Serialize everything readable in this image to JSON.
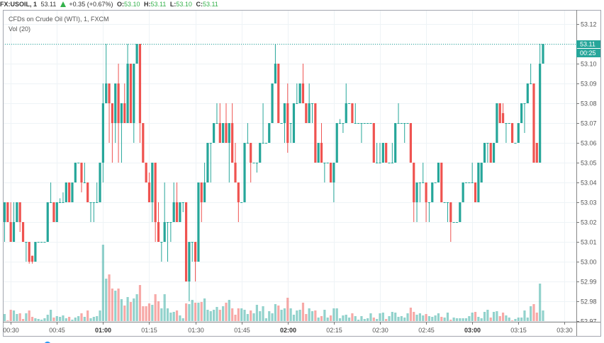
{
  "header": {
    "symbol": "FX:USOIL, 1",
    "last": "53.11",
    "direction_icon": "up-triangle-icon",
    "change": "+0.35 (+0.67%)",
    "ohlc": [
      {
        "key": "O:",
        "value": "53.10"
      },
      {
        "key": "H:",
        "value": "53.11"
      },
      {
        "key": "L:",
        "value": "53.10"
      },
      {
        "key": "C:",
        "value": "53.11"
      }
    ]
  },
  "legend": {
    "series": "CFDs on Crude Oil (WTI), 1, FXCM",
    "volume": "Vol (20)"
  },
  "price_axis": {
    "labels": [
      "53.12",
      "53.11",
      "53.10",
      "53.09",
      "53.08",
      "53.07",
      "53.06",
      "53.05",
      "53.04",
      "53.03",
      "53.02",
      "53.01",
      "53.00",
      "52.99",
      "52.98",
      "52.97"
    ],
    "last_price_badge": "53.11",
    "countdown_badge": "00:25"
  },
  "time_axis": {
    "labels": [
      {
        "label": "00:30",
        "bold": false
      },
      {
        "label": "00:45",
        "bold": false
      },
      {
        "label": "01:00",
        "bold": true
      },
      {
        "label": "01:15",
        "bold": false
      },
      {
        "label": "01:30",
        "bold": false
      },
      {
        "label": "01:45",
        "bold": false
      },
      {
        "label": "02:00",
        "bold": true
      },
      {
        "label": "02:15",
        "bold": false
      },
      {
        "label": "02:30",
        "bold": false
      },
      {
        "label": "02:45",
        "bold": false
      },
      {
        "label": "03:00",
        "bold": true
      },
      {
        "label": "03:15",
        "bold": false
      },
      {
        "label": "03:30",
        "bold": false
      }
    ]
  },
  "colors": {
    "up": "#26a69a",
    "down": "#ef5350",
    "up_volume": "rgba(38,166,154,0.5)",
    "down_volume": "rgba(239,83,80,0.5)",
    "header_value": "#33b14a",
    "last_price_line": "#26a69a",
    "badge": "#26a69a",
    "grid": "#eef3f6",
    "frame": "#a3a6af",
    "indicator_dot": "#2196f3"
  },
  "chart_data": {
    "type": "candlestick",
    "title": "CFDs on Crude Oil (WTI), 1, FXCM",
    "symbol": "FX:USOIL",
    "interval": "1",
    "xlabel": "",
    "ylabel": "",
    "ylim": [
      52.97,
      53.12
    ],
    "y_ticks": [
      53.12,
      53.11,
      53.1,
      53.09,
      53.08,
      53.07,
      53.06,
      53.05,
      53.04,
      53.03,
      53.02,
      53.01,
      53.0,
      52.99,
      52.98,
      52.97
    ],
    "x_ticks": [
      "00:30",
      "00:45",
      "01:00",
      "01:15",
      "01:30",
      "01:45",
      "02:00",
      "02:15",
      "02:30",
      "02:45",
      "03:00",
      "03:15",
      "03:30"
    ],
    "grid": true,
    "last_price": 53.11,
    "ohlc_order": [
      "open",
      "high",
      "low",
      "close"
    ],
    "candles": [
      [
        53.02,
        53.03,
        53.01,
        53.03
      ],
      [
        53.03,
        53.03,
        53.02,
        53.02
      ],
      [
        53.02,
        53.03,
        53.01,
        53.01
      ],
      [
        53.01,
        53.03,
        53.01,
        53.02
      ],
      [
        53.02,
        53.03,
        53.02,
        53.03
      ],
      [
        53.03,
        53.03,
        53.015,
        53.02
      ],
      [
        53.02,
        53.02,
        53.01,
        53.01
      ],
      [
        53.01,
        53.01,
        53.0,
        53.01
      ],
      [
        53.01,
        53.01,
        52.999,
        53.0
      ],
      [
        53.003,
        53.003,
        52.999,
        53.0
      ],
      [
        53.0,
        53.01,
        53.0,
        53.01
      ],
      [
        53.01,
        53.01,
        53.01,
        53.01
      ],
      [
        53.01,
        53.01,
        53.01,
        53.01
      ],
      [
        53.01,
        53.01,
        53.01,
        53.01
      ],
      [
        53.01,
        53.03,
        53.01,
        53.03
      ],
      [
        53.03,
        53.04,
        53.03,
        53.03
      ],
      [
        53.03,
        53.03,
        53.02,
        53.02
      ],
      [
        53.02,
        53.03,
        53.02,
        53.03
      ],
      [
        53.03,
        53.032,
        53.03,
        53.03
      ],
      [
        53.03,
        53.035,
        53.03,
        53.03
      ],
      [
        53.03,
        53.04,
        53.03,
        53.04
      ],
      [
        53.04,
        53.04,
        53.03,
        53.03
      ],
      [
        53.03,
        53.04,
        53.03,
        53.04
      ],
      [
        53.04,
        53.05,
        53.04,
        53.05
      ],
      [
        53.05,
        53.05,
        53.05,
        53.05
      ],
      [
        53.05,
        53.05,
        53.035,
        53.04
      ],
      [
        53.04,
        53.05,
        53.04,
        53.04
      ],
      [
        53.04,
        53.04,
        53.03,
        53.03
      ],
      [
        53.03,
        53.03,
        53.02,
        53.03
      ],
      [
        53.03,
        53.03,
        53.02,
        53.03
      ],
      [
        53.03,
        53.04,
        53.03,
        53.03
      ],
      [
        53.03,
        53.05,
        53.03,
        53.05
      ],
      [
        53.05,
        53.09,
        53.04,
        53.08
      ],
      [
        53.08,
        53.11,
        53.08,
        53.09
      ],
      [
        53.09,
        53.09,
        53.06,
        53.08
      ],
      [
        53.08,
        53.08,
        53.05,
        53.07
      ],
      [
        53.07,
        53.09,
        53.06,
        53.09
      ],
      [
        53.09,
        53.1,
        53.05,
        53.07
      ],
      [
        53.07,
        53.08,
        53.05,
        53.08
      ],
      [
        53.08,
        53.09,
        53.07,
        53.07
      ],
      [
        53.07,
        53.11,
        53.07,
        53.1
      ],
      [
        53.1,
        53.1,
        53.07,
        53.07
      ],
      [
        53.07,
        53.1,
        53.06,
        53.1
      ],
      [
        53.1,
        53.11,
        53.1,
        53.11
      ],
      [
        53.11,
        53.11,
        53.06,
        53.07
      ],
      [
        53.07,
        53.07,
        53.05,
        53.05
      ],
      [
        53.05,
        53.05,
        53.04,
        53.04
      ],
      [
        53.04,
        53.045,
        53.03,
        53.03
      ],
      [
        53.03,
        53.05,
        53.02,
        53.05
      ],
      [
        53.05,
        53.05,
        53.01,
        53.02
      ],
      [
        53.02,
        53.03,
        53.01,
        53.01
      ],
      [
        53.01,
        53.01,
        53.0,
        53.01
      ],
      [
        53.01,
        53.04,
        53.01,
        53.02
      ],
      [
        53.02,
        53.02,
        53.0,
        53.02
      ],
      [
        53.02,
        53.02,
        53.01,
        53.02
      ],
      [
        53.02,
        53.04,
        53.02,
        53.03
      ],
      [
        53.03,
        53.04,
        53.02,
        53.02
      ],
      [
        53.02,
        53.03,
        53.02,
        53.03
      ],
      [
        53.03,
        53.03,
        53.025,
        53.03
      ],
      [
        53.03,
        53.03,
        52.99,
        52.99
      ],
      [
        52.99,
        53.01,
        52.98,
        53.01
      ],
      [
        53.01,
        53.01,
        53.0,
        53.01
      ],
      [
        53.01,
        53.01,
        52.99,
        53.0
      ],
      [
        53.0,
        53.04,
        53.0,
        53.04
      ],
      [
        53.04,
        53.04,
        53.02,
        53.03
      ],
      [
        53.03,
        53.05,
        53.03,
        53.04
      ],
      [
        53.04,
        53.06,
        53.04,
        53.06
      ],
      [
        53.06,
        53.06,
        53.04,
        53.06
      ],
      [
        53.06,
        53.07,
        53.06,
        53.07
      ],
      [
        53.07,
        53.08,
        53.07,
        53.07
      ],
      [
        53.07,
        53.08,
        53.06,
        53.06
      ],
      [
        53.06,
        53.07,
        53.06,
        53.07
      ],
      [
        53.07,
        53.08,
        53.06,
        53.06
      ],
      [
        53.06,
        53.07,
        53.04,
        53.07
      ],
      [
        53.07,
        53.08,
        53.05,
        53.05
      ],
      [
        53.05,
        53.06,
        53.04,
        53.04
      ],
      [
        53.04,
        53.04,
        53.02,
        53.03
      ],
      [
        53.03,
        53.03,
        53.03,
        53.03
      ],
      [
        53.03,
        53.06,
        53.03,
        53.06
      ],
      [
        53.06,
        53.07,
        53.06,
        53.06
      ],
      [
        53.06,
        53.06,
        53.04,
        53.05
      ],
      [
        53.05,
        53.05,
        53.05,
        53.05
      ],
      [
        53.05,
        53.05,
        53.045,
        53.05
      ],
      [
        53.05,
        53.06,
        53.05,
        53.06
      ],
      [
        53.06,
        53.08,
        53.06,
        53.06
      ],
      [
        53.06,
        53.06,
        53.06,
        53.06
      ],
      [
        53.06,
        53.07,
        53.06,
        53.07
      ],
      [
        53.07,
        53.09,
        53.07,
        53.09
      ],
      [
        53.09,
        53.11,
        53.09,
        53.1
      ],
      [
        53.1,
        53.1,
        53.07,
        53.07
      ],
      [
        53.07,
        53.07,
        53.07,
        53.07
      ],
      [
        53.07,
        53.08,
        53.06,
        53.08
      ],
      [
        53.08,
        53.09,
        53.055,
        53.06
      ],
      [
        53.07,
        53.07,
        53.06,
        53.07
      ],
      [
        53.06,
        53.08,
        53.06,
        53.08
      ],
      [
        53.08,
        53.09,
        53.08,
        53.08
      ],
      [
        53.08,
        53.09,
        53.08,
        53.09
      ],
      [
        53.09,
        53.1,
        53.08,
        53.08
      ],
      [
        53.08,
        53.08,
        53.07,
        53.07
      ],
      [
        53.07,
        53.09,
        53.07,
        53.08
      ],
      [
        53.08,
        53.08,
        53.07,
        53.08
      ],
      [
        53.08,
        53.08,
        53.05,
        53.05
      ],
      [
        53.05,
        53.06,
        53.05,
        53.06
      ],
      [
        53.06,
        53.07,
        53.05,
        53.05
      ],
      [
        53.05,
        53.05,
        53.04,
        53.05
      ],
      [
        53.05,
        53.05,
        53.05,
        53.05
      ],
      [
        53.05,
        53.05,
        53.04,
        53.04
      ],
      [
        53.04,
        53.05,
        53.03,
        53.05
      ],
      [
        53.05,
        53.07,
        53.05,
        53.07
      ],
      [
        53.07,
        53.072,
        53.07,
        53.07
      ],
      [
        53.07,
        53.07,
        53.065,
        53.07
      ],
      [
        53.07,
        53.09,
        53.07,
        53.08
      ],
      [
        53.08,
        53.08,
        53.08,
        53.08
      ],
      [
        53.08,
        53.08,
        53.07,
        53.07
      ],
      [
        53.07,
        53.08,
        53.07,
        53.07
      ],
      [
        53.07,
        53.07,
        53.07,
        53.07
      ],
      [
        53.07,
        53.07,
        53.06,
        53.07
      ],
      [
        53.07,
        53.07,
        53.07,
        53.07
      ],
      [
        53.07,
        53.07,
        53.07,
        53.07
      ],
      [
        53.07,
        53.07,
        53.07,
        53.07
      ],
      [
        53.07,
        53.07,
        53.05,
        53.05
      ],
      [
        53.05,
        53.06,
        53.05,
        53.05
      ],
      [
        53.05,
        53.06,
        53.05,
        53.05
      ],
      [
        53.05,
        53.06,
        53.05,
        53.06
      ],
      [
        53.06,
        53.06,
        53.05,
        53.05
      ],
      [
        53.05,
        53.05,
        53.05,
        53.05
      ],
      [
        53.05,
        53.06,
        53.05,
        53.05
      ],
      [
        53.05,
        53.07,
        53.05,
        53.07
      ],
      [
        53.07,
        53.08,
        53.07,
        53.07
      ],
      [
        53.07,
        53.07,
        53.07,
        53.07
      ],
      [
        53.07,
        53.07,
        53.06,
        53.07
      ],
      [
        53.07,
        53.07,
        53.07,
        53.07
      ],
      [
        53.07,
        53.07,
        53.05,
        53.05
      ],
      [
        53.05,
        53.05,
        53.02,
        53.03
      ],
      [
        53.03,
        53.04,
        53.02,
        53.04
      ],
      [
        53.04,
        53.04,
        53.03,
        53.04
      ],
      [
        53.04,
        53.05,
        53.04,
        53.04
      ],
      [
        53.04,
        53.04,
        53.02,
        53.03
      ],
      [
        53.03,
        53.03,
        53.02,
        53.03
      ],
      [
        53.03,
        53.04,
        53.03,
        53.04
      ],
      [
        53.04,
        53.04,
        53.04,
        53.04
      ],
      [
        53.04,
        53.05,
        53.04,
        53.05
      ],
      [
        53.05,
        53.05,
        53.03,
        53.03
      ],
      [
        53.03,
        53.03,
        53.03,
        53.03
      ],
      [
        53.03,
        53.03,
        53.02,
        53.03
      ],
      [
        53.03,
        53.03,
        53.01,
        53.02
      ],
      [
        53.02,
        53.02,
        53.02,
        53.02
      ],
      [
        53.02,
        53.02,
        53.02,
        53.02
      ],
      [
        53.02,
        53.03,
        53.02,
        53.03
      ],
      [
        53.03,
        53.04,
        53.03,
        53.04
      ],
      [
        53.04,
        53.04,
        53.04,
        53.04
      ],
      [
        53.04,
        53.04,
        53.04,
        53.04
      ],
      [
        53.04,
        53.05,
        53.04,
        53.04
      ],
      [
        53.04,
        53.04,
        53.03,
        53.03
      ],
      [
        53.03,
        53.05,
        53.03,
        53.05
      ],
      [
        53.04,
        53.05,
        53.04,
        53.05
      ],
      [
        53.05,
        53.06,
        53.05,
        53.06
      ],
      [
        53.06,
        53.06,
        53.05,
        53.06
      ],
      [
        53.06,
        53.06,
        53.05,
        53.05
      ],
      [
        53.05,
        53.06,
        53.05,
        53.06
      ],
      [
        53.06,
        53.08,
        53.06,
        53.08
      ],
      [
        53.08,
        53.08,
        53.07,
        53.07
      ],
      [
        53.075,
        53.08,
        53.07,
        53.07
      ],
      [
        53.07,
        53.07,
        53.06,
        53.07
      ],
      [
        53.07,
        53.07,
        53.07,
        53.07
      ],
      [
        53.07,
        53.07,
        53.06,
        53.06
      ],
      [
        53.06,
        53.06,
        53.06,
        53.06
      ],
      [
        53.06,
        53.07,
        53.06,
        53.07
      ],
      [
        53.07,
        53.08,
        53.07,
        53.08
      ],
      [
        53.08,
        53.08,
        53.065,
        53.08
      ],
      [
        53.08,
        53.09,
        53.08,
        53.09
      ],
      [
        53.09,
        53.1,
        53.09,
        53.09
      ],
      [
        53.09,
        53.09,
        53.05,
        53.05
      ],
      [
        53.06,
        53.06,
        53.05,
        53.05
      ],
      [
        53.05,
        53.11,
        53.05,
        53.1
      ],
      [
        53.1,
        53.11,
        53.1,
        53.11
      ]
    ],
    "volume": {
      "label": "Vol (20)",
      "values": [
        10,
        1,
        16,
        15,
        10,
        11,
        3,
        11,
        15,
        6,
        4,
        3,
        2,
        4,
        9,
        16,
        5,
        7,
        6,
        8,
        4,
        6,
        2,
        5,
        7,
        11,
        6,
        15,
        4,
        6,
        7,
        15,
        108,
        60,
        66,
        46,
        43,
        46,
        31,
        22,
        34,
        27,
        32,
        38,
        51,
        21,
        21,
        25,
        23,
        38,
        28,
        18,
        38,
        18,
        12,
        13,
        15,
        8,
        4,
        25,
        24,
        30,
        26,
        26,
        27,
        32,
        16,
        14,
        16,
        20,
        16,
        21,
        26,
        30,
        18,
        9,
        18,
        18,
        16,
        10,
        15,
        11,
        23,
        14,
        21,
        4,
        14,
        11,
        24,
        22,
        16,
        18,
        33,
        18,
        9,
        15,
        16,
        26,
        10,
        18,
        14,
        15,
        5,
        7,
        16,
        5,
        8,
        18,
        18,
        4,
        8,
        9,
        5,
        11,
        7,
        2,
        7,
        3,
        4,
        11,
        5,
        3,
        11,
        12,
        3,
        7,
        13,
        12,
        6,
        7,
        5,
        11,
        19,
        13,
        9,
        11,
        8,
        10,
        7,
        6,
        8,
        11,
        6,
        5,
        12,
        2,
        5,
        4,
        4,
        4,
        4,
        7,
        12,
        13,
        6,
        4,
        13,
        16,
        5,
        13,
        14,
        7,
        12,
        8,
        5,
        1,
        3,
        5,
        5,
        15,
        5,
        21,
        24,
        12,
        53,
        15
      ]
    }
  }
}
